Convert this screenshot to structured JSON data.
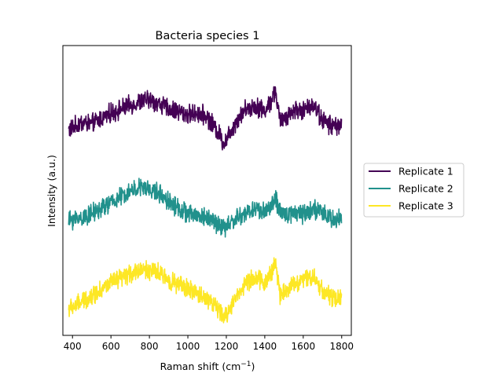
{
  "chart_data": {
    "type": "line",
    "title": "Bacteria species 1",
    "xlabel": "Raman shift (cm",
    "xlabel_sup": "−1",
    "xlabel_suffix": ")",
    "ylabel": "Intensity (a.u.)",
    "xlim": [
      350,
      1850
    ],
    "ylim": [
      0,
      3.1
    ],
    "yticks_visible": false,
    "xticks": [
      400,
      600,
      800,
      1000,
      1200,
      1400,
      1600,
      1800
    ],
    "xtick_labels": [
      "400",
      "600",
      "800",
      "1000",
      "1200",
      "1400",
      "1600",
      "1800"
    ],
    "legend_position": "center-right-outside",
    "series": [
      {
        "name": "Replicate 1",
        "color": "#440154",
        "x": [
          380,
          400,
          450,
          500,
          550,
          600,
          650,
          700,
          750,
          800,
          850,
          900,
          950,
          1000,
          1050,
          1100,
          1150,
          1190,
          1220,
          1260,
          1300,
          1350,
          1400,
          1430,
          1455,
          1480,
          1520,
          1560,
          1600,
          1650,
          1700,
          1750,
          1800
        ],
        "values": [
          2.2,
          2.22,
          2.28,
          2.26,
          2.32,
          2.38,
          2.42,
          2.46,
          2.5,
          2.52,
          2.48,
          2.42,
          2.4,
          2.36,
          2.38,
          2.34,
          2.2,
          2.05,
          2.18,
          2.32,
          2.42,
          2.46,
          2.4,
          2.5,
          2.62,
          2.28,
          2.36,
          2.42,
          2.4,
          2.48,
          2.3,
          2.24,
          2.26
        ]
      },
      {
        "name": "Replicate 2",
        "color": "#21918c",
        "x": [
          380,
          400,
          450,
          500,
          550,
          600,
          650,
          700,
          750,
          800,
          850,
          900,
          950,
          1000,
          1050,
          1100,
          1150,
          1190,
          1220,
          1260,
          1300,
          1350,
          1400,
          1430,
          1455,
          1480,
          1520,
          1560,
          1600,
          1650,
          1700,
          1750,
          1800
        ],
        "values": [
          1.22,
          1.24,
          1.26,
          1.3,
          1.36,
          1.42,
          1.48,
          1.54,
          1.58,
          1.56,
          1.52,
          1.44,
          1.36,
          1.3,
          1.28,
          1.26,
          1.2,
          1.14,
          1.2,
          1.26,
          1.3,
          1.36,
          1.32,
          1.38,
          1.46,
          1.3,
          1.3,
          1.32,
          1.3,
          1.36,
          1.3,
          1.24,
          1.26
        ]
      },
      {
        "name": "Replicate 3",
        "color": "#fde725",
        "x": [
          380,
          400,
          450,
          500,
          550,
          600,
          650,
          700,
          750,
          800,
          850,
          900,
          950,
          1000,
          1050,
          1100,
          1150,
          1190,
          1220,
          1260,
          1300,
          1350,
          1400,
          1430,
          1455,
          1480,
          1520,
          1560,
          1600,
          1650,
          1700,
          1750,
          1800
        ],
        "values": [
          0.28,
          0.3,
          0.36,
          0.42,
          0.5,
          0.56,
          0.6,
          0.66,
          0.7,
          0.7,
          0.66,
          0.6,
          0.54,
          0.5,
          0.44,
          0.4,
          0.3,
          0.18,
          0.3,
          0.44,
          0.56,
          0.62,
          0.56,
          0.66,
          0.78,
          0.44,
          0.5,
          0.56,
          0.6,
          0.64,
          0.48,
          0.4,
          0.38
        ]
      }
    ]
  }
}
